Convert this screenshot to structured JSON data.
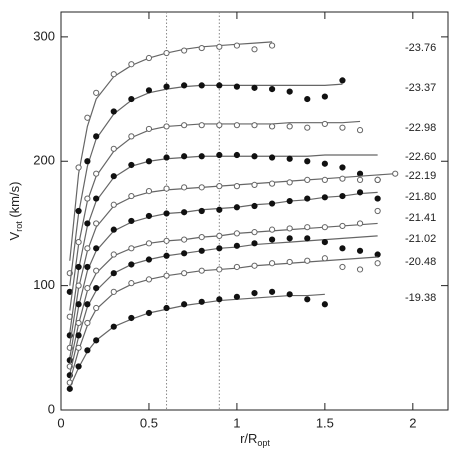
{
  "chart_data": {
    "type": "rotation-curves",
    "xlabel": {
      "text": "r/R",
      "subscript": "opt"
    },
    "ylabel": {
      "text": "V",
      "subscript": "rot",
      "suffix": " (km/s)"
    },
    "xlim": [
      0,
      2.2
    ],
    "ylim": [
      0,
      320
    ],
    "xticks": [
      0,
      0.5,
      1,
      1.5,
      2
    ],
    "yticks": [
      0,
      100,
      200,
      300
    ],
    "vlines": [
      0.6,
      0.9
    ],
    "x": [
      0.05,
      0.1,
      0.15,
      0.2,
      0.3,
      0.4,
      0.5,
      0.6,
      0.7,
      0.8,
      0.9,
      1.0,
      1.1,
      1.2,
      1.3,
      1.4,
      1.5,
      1.6,
      1.7,
      1.8,
      1.9
    ],
    "series": [
      {
        "name": "-23.76",
        "filled": false,
        "values": [
          110,
          195,
          235,
          255,
          270,
          278,
          283,
          287,
          289,
          291,
          292,
          293,
          290,
          293,
          null,
          null,
          null,
          null,
          null,
          null,
          null
        ],
        "fit": [
          120,
          190,
          228,
          250,
          268,
          277,
          283,
          287,
          290,
          292,
          293,
          294,
          295,
          296,
          null,
          null,
          null,
          null,
          null,
          null,
          null
        ]
      },
      {
        "name": "-23.37",
        "filled": true,
        "values": [
          95,
          160,
          200,
          220,
          240,
          250,
          257,
          260,
          261,
          261,
          261,
          260,
          259,
          258,
          256,
          250,
          252,
          265,
          null,
          null,
          null
        ],
        "fit": [
          100,
          158,
          196,
          218,
          238,
          249,
          255,
          258,
          260,
          261,
          261,
          261,
          261,
          261,
          261,
          261,
          261,
          262,
          null,
          null,
          null
        ]
      },
      {
        "name": "-22.98",
        "filled": false,
        "values": [
          75,
          135,
          170,
          190,
          210,
          220,
          226,
          228,
          229,
          229,
          229,
          229,
          229,
          228,
          228,
          227,
          230,
          227,
          225,
          null,
          null
        ],
        "fit": [
          80,
          133,
          168,
          188,
          208,
          219,
          225,
          228,
          229,
          230,
          230,
          230,
          230,
          230,
          231,
          231,
          231,
          231,
          232,
          null,
          null
        ]
      },
      {
        "name": "-22.60",
        "filled": true,
        "values": [
          60,
          115,
          150,
          170,
          188,
          197,
          200,
          203,
          204,
          204,
          205,
          205,
          204,
          203,
          202,
          200,
          198,
          195,
          190,
          185,
          null
        ],
        "fit": [
          62,
          113,
          148,
          168,
          187,
          196,
          200,
          202,
          203,
          204,
          204,
          204,
          204,
          204,
          204,
          204,
          205,
          205,
          205,
          205,
          null
        ]
      },
      {
        "name": "-22.19",
        "filled": false,
        "values": [
          50,
          100,
          130,
          150,
          165,
          172,
          176,
          178,
          179,
          179,
          180,
          180,
          181,
          182,
          183,
          185,
          185,
          186,
          185,
          185,
          190
        ],
        "fit": [
          52,
          98,
          128,
          147,
          164,
          171,
          175,
          177,
          178,
          179,
          180,
          181,
          182,
          183,
          184,
          185,
          186,
          187,
          188,
          189,
          190
        ]
      },
      {
        "name": "-21.80",
        "filled": true,
        "values": [
          40,
          85,
          115,
          130,
          145,
          152,
          156,
          158,
          159,
          160,
          161,
          163,
          164,
          166,
          168,
          170,
          171,
          172,
          175,
          170,
          null
        ],
        "fit": [
          42,
          83,
          112,
          128,
          144,
          151,
          155,
          158,
          159,
          161,
          162,
          163,
          165,
          166,
          168,
          169,
          171,
          172,
          174,
          175,
          null
        ]
      },
      {
        "name": "-21.41",
        "filled": false,
        "values": [
          35,
          70,
          98,
          112,
          125,
          130,
          134,
          136,
          137,
          139,
          140,
          142,
          143,
          145,
          146,
          147,
          147,
          148,
          150,
          160,
          null
        ],
        "fit": [
          36,
          69,
          96,
          110,
          124,
          130,
          134,
          136,
          137,
          139,
          140,
          142,
          143,
          144,
          145,
          146,
          147,
          148,
          149,
          150,
          null
        ]
      },
      {
        "name": "-21.02",
        "filled": true,
        "values": [
          28,
          60,
          85,
          98,
          110,
          117,
          121,
          124,
          126,
          128,
          130,
          132,
          134,
          137,
          138,
          138,
          135,
          130,
          128,
          125,
          null
        ],
        "fit": [
          29,
          59,
          83,
          96,
          110,
          117,
          121,
          124,
          126,
          128,
          130,
          131,
          133,
          134,
          135,
          136,
          137,
          138,
          139,
          140,
          null
        ]
      },
      {
        "name": "-20.48",
        "filled": false,
        "values": [
          22,
          50,
          70,
          82,
          95,
          102,
          105,
          108,
          110,
          112,
          113,
          115,
          116,
          118,
          119,
          120,
          122,
          115,
          113,
          118,
          null
        ],
        "fit": [
          23,
          48,
          68,
          81,
          94,
          101,
          105,
          108,
          110,
          112,
          113,
          114,
          116,
          117,
          118,
          119,
          120,
          121,
          122,
          123,
          null
        ]
      },
      {
        "name": "-19.38",
        "filled": true,
        "values": [
          17,
          35,
          48,
          56,
          67,
          74,
          78,
          82,
          85,
          87,
          89,
          91,
          94,
          95,
          93,
          89,
          85,
          null,
          null,
          null,
          null
        ],
        "fit": [
          18,
          34,
          47,
          56,
          67,
          73,
          78,
          81,
          84,
          86,
          88,
          89,
          90,
          91,
          92,
          92,
          93,
          null,
          null,
          null,
          null
        ]
      }
    ]
  }
}
